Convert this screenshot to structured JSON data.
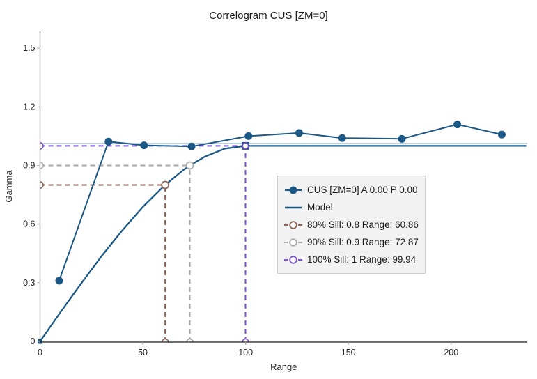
{
  "title": "Correlogram CUS [ZM=0]",
  "colors": {
    "series": "#1b5886",
    "model": "#1b5886",
    "sill_line": "#a9c3dc",
    "sill80": "#8a6355",
    "sill90": "#a9a9a9",
    "sill100": "#7b52c9",
    "axis": "#1a1a1a",
    "tick_mark": "#b0b0b0",
    "text": "#262626",
    "legend_bg": "#f2f2f2",
    "legend_border": "#cfcfcf"
  },
  "chart_data": {
    "type": "line",
    "title": "Correlogram CUS [ZM=0]",
    "xlabel": "Range",
    "ylabel": "Gamma",
    "xlim": [
      0,
      237
    ],
    "ylim": [
      0,
      1.586
    ],
    "x_ticks": [
      0,
      50,
      100,
      150,
      200
    ],
    "y_ticks": [
      0,
      0.3,
      0.6,
      0.9,
      1.2,
      1.5
    ],
    "grid": "off",
    "legend_position": "center-right",
    "series": [
      {
        "name": "CUS [ZM=0] A 0.00 P 0.00",
        "type": "scatter-line",
        "marker": "filled-circle",
        "points": [
          [
            9.3,
            0.31
          ],
          [
            33.3,
            1.022
          ],
          [
            50.6,
            1.003
          ],
          [
            73.7,
            0.997
          ],
          [
            101.4,
            1.05
          ],
          [
            126,
            1.066
          ],
          [
            147,
            1.04
          ],
          [
            176,
            1.036
          ],
          [
            203,
            1.11
          ],
          [
            224.6,
            1.058
          ]
        ]
      },
      {
        "name": "Model",
        "type": "line",
        "model_type": "spherical",
        "sill": 1,
        "range": 99.94,
        "points": [
          [
            0,
            0
          ],
          [
            10,
            0.15
          ],
          [
            20,
            0.296
          ],
          [
            30,
            0.437
          ],
          [
            40,
            0.568
          ],
          [
            50,
            0.688
          ],
          [
            60,
            0.792
          ],
          [
            60.86,
            0.8
          ],
          [
            70,
            0.879
          ],
          [
            72.87,
            0.9
          ],
          [
            80,
            0.944
          ],
          [
            90,
            0.986
          ],
          [
            99.94,
            1.0
          ],
          [
            236.5,
            1.0
          ]
        ]
      }
    ],
    "sill_reference_line": {
      "value": 1.012
    },
    "sill_markers": [
      {
        "label": "80% Sill: 0.8 Range: 60.86",
        "sill": 0.8,
        "range": 60.86
      },
      {
        "label": "90% Sill: 0.9 Range: 72.87",
        "sill": 0.9,
        "range": 72.87
      },
      {
        "label": "100% Sill: 1 Range: 99.94",
        "sill": 1.0,
        "range": 99.94
      }
    ]
  },
  "legend": {
    "items": [
      {
        "label": "CUS [ZM=0] A 0.00 P 0.00",
        "marker": "filled-circle-line",
        "color": "#1b5886"
      },
      {
        "label": "Model",
        "marker": "line",
        "color": "#1b5886"
      },
      {
        "label": "80% Sill: 0.8 Range: 60.86",
        "marker": "open-circle-dashed",
        "color": "#8a6355"
      },
      {
        "label": "90% Sill: 0.9 Range: 72.87",
        "marker": "open-circle-dashed",
        "color": "#a9a9a9"
      },
      {
        "label": "100% Sill: 1 Range: 99.94",
        "marker": "open-circle-dashed",
        "color": "#7b52c9"
      }
    ]
  }
}
